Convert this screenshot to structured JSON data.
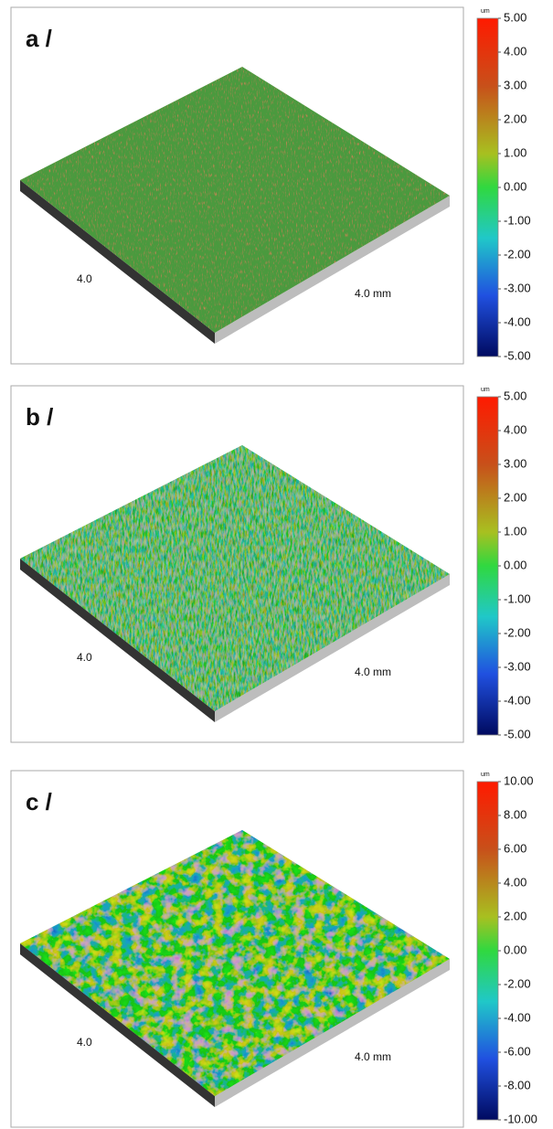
{
  "panels": [
    {
      "label": "a /",
      "unit": "um",
      "x_label": "4.0",
      "y_label": "4.0 mm",
      "ticks": [
        {
          "value": 5,
          "label": "5.00"
        },
        {
          "value": 4,
          "label": "4.00"
        },
        {
          "value": 3,
          "label": "3.00"
        },
        {
          "value": 2,
          "label": "2.00"
        },
        {
          "value": 1,
          "label": "1.00"
        },
        {
          "value": 0,
          "label": "0.00"
        },
        {
          "value": -1,
          "label": "-1.00"
        },
        {
          "value": -2,
          "label": "-2.00"
        },
        {
          "value": -3,
          "label": "-3.00"
        },
        {
          "value": -4,
          "label": "-4.00"
        },
        {
          "value": -5,
          "label": "-5.00"
        }
      ]
    },
    {
      "label": "b /",
      "unit": "um",
      "x_label": "4.0",
      "y_label": "4.0 mm",
      "ticks": [
        {
          "value": 5,
          "label": "5.00"
        },
        {
          "value": 4,
          "label": "4.00"
        },
        {
          "value": 3,
          "label": "3.00"
        },
        {
          "value": 2,
          "label": "2.00"
        },
        {
          "value": 1,
          "label": "1.00"
        },
        {
          "value": 0,
          "label": "0.00"
        },
        {
          "value": -1,
          "label": "-1.00"
        },
        {
          "value": -2,
          "label": "-2.00"
        },
        {
          "value": -3,
          "label": "-3.00"
        },
        {
          "value": -4,
          "label": "-4.00"
        },
        {
          "value": -5,
          "label": "-5.00"
        }
      ]
    },
    {
      "label": "c /",
      "unit": "um",
      "x_label": "4.0",
      "y_label": "4.0 mm",
      "ticks": [
        {
          "value": 10,
          "label": "10.00"
        },
        {
          "value": 8,
          "label": "8.00"
        },
        {
          "value": 6,
          "label": "6.00"
        },
        {
          "value": 4,
          "label": "4.00"
        },
        {
          "value": 2,
          "label": "2.00"
        },
        {
          "value": 0,
          "label": "0.00"
        },
        {
          "value": -2,
          "label": "-2.00"
        },
        {
          "value": -4,
          "label": "-4.00"
        },
        {
          "value": -6,
          "label": "-6.00"
        },
        {
          "value": -8,
          "label": "-8.00"
        },
        {
          "value": -10,
          "label": "-10.00"
        }
      ]
    }
  ]
}
